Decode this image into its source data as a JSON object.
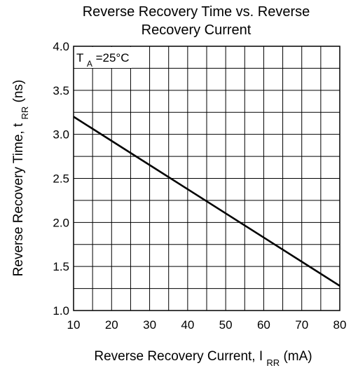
{
  "chart_data": {
    "type": "line",
    "title": "Reverse Recovery Time vs. Reverse\nRecovery Current",
    "xlabel": {
      "main": "Reverse Recovery Current,  I",
      "sub": "RR",
      "tail": " (mA)"
    },
    "ylabel": {
      "main": "Reverse Recovery Time,  t",
      "sub": "RR",
      "tail": "  (ns)"
    },
    "annotation": {
      "main": "T",
      "sub": "A",
      "tail": "=25°C"
    },
    "xlim": [
      10,
      80
    ],
    "ylim": [
      1.0,
      4.0
    ],
    "x_ticks": [
      "10",
      "20",
      "30",
      "40",
      "50",
      "60",
      "70",
      "80"
    ],
    "y_ticks": [
      "1.0",
      "1.5",
      "2.0",
      "2.5",
      "3.0",
      "3.5",
      "4.0"
    ],
    "grid": true,
    "series": [
      {
        "x": [
          10,
          80
        ],
        "y": [
          3.2,
          1.28
        ]
      }
    ]
  }
}
